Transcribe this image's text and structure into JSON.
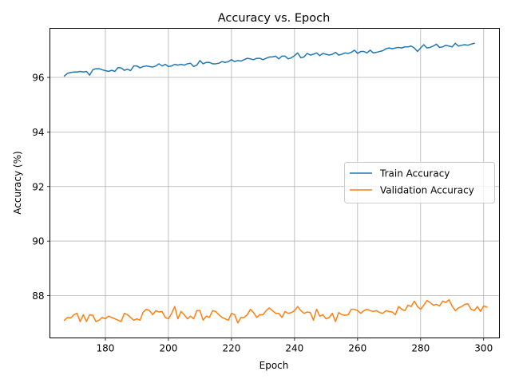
{
  "chart_data": {
    "type": "line",
    "title": "Accuracy vs. Epoch",
    "xlabel": "Epoch",
    "ylabel": "Accuracy (%)",
    "xlim": [
      162.4,
      305.0
    ],
    "ylim": [
      86.45,
      97.8
    ],
    "xticks": [
      180,
      200,
      220,
      240,
      260,
      280,
      300
    ],
    "yticks": [
      88,
      90,
      92,
      94,
      96
    ],
    "grid": true,
    "legend_position": "center-right",
    "series": [
      {
        "name": "Train Accuracy",
        "color": "#1f77b4",
        "x_start": 167,
        "x_step": 1,
        "values": [
          96.05,
          96.15,
          96.18,
          96.2,
          96.2,
          96.22,
          96.2,
          96.22,
          96.08,
          96.28,
          96.32,
          96.32,
          96.28,
          96.25,
          96.22,
          96.26,
          96.22,
          96.36,
          96.35,
          96.26,
          96.3,
          96.25,
          96.42,
          96.42,
          96.35,
          96.4,
          96.42,
          96.4,
          96.38,
          96.42,
          96.5,
          96.42,
          96.48,
          96.4,
          96.42,
          96.48,
          96.45,
          96.48,
          96.45,
          96.5,
          96.52,
          96.4,
          96.45,
          96.62,
          96.5,
          96.55,
          96.55,
          96.5,
          96.5,
          96.52,
          96.58,
          96.55,
          96.58,
          96.65,
          96.58,
          96.62,
          96.6,
          96.65,
          96.7,
          96.68,
          96.65,
          96.7,
          96.7,
          96.65,
          96.7,
          96.75,
          96.75,
          96.78,
          96.68,
          96.78,
          96.78,
          96.68,
          96.72,
          96.8,
          96.9,
          96.72,
          96.75,
          96.88,
          96.82,
          96.85,
          96.9,
          96.8,
          96.88,
          96.85,
          96.82,
          96.85,
          96.92,
          96.82,
          96.85,
          96.9,
          96.88,
          96.92,
          97.0,
          96.88,
          96.95,
          96.95,
          96.9,
          97.0,
          96.9,
          96.92,
          96.95,
          96.98,
          97.05,
          97.08,
          97.05,
          97.08,
          97.1,
          97.08,
          97.12,
          97.12,
          97.15,
          97.08,
          96.95,
          97.08,
          97.2,
          97.08,
          97.1,
          97.15,
          97.22,
          97.1,
          97.12,
          97.18,
          97.15,
          97.12,
          97.25,
          97.15,
          97.18,
          97.2,
          97.18,
          97.22,
          97.25
        ]
      },
      {
        "name": "Validation Accuracy",
        "color": "#ff7f0e",
        "x_start": 167,
        "x_step": 1,
        "values": [
          87.1,
          87.2,
          87.18,
          87.3,
          87.35,
          87.05,
          87.3,
          87.05,
          87.3,
          87.28,
          87.05,
          87.1,
          87.2,
          87.15,
          87.25,
          87.2,
          87.15,
          87.1,
          87.05,
          87.35,
          87.3,
          87.2,
          87.1,
          87.15,
          87.1,
          87.4,
          87.5,
          87.45,
          87.3,
          87.45,
          87.4,
          87.42,
          87.2,
          87.15,
          87.35,
          87.6,
          87.15,
          87.42,
          87.3,
          87.15,
          87.25,
          87.15,
          87.45,
          87.45,
          87.1,
          87.25,
          87.2,
          87.45,
          87.42,
          87.3,
          87.2,
          87.15,
          87.1,
          87.35,
          87.3,
          87.0,
          87.2,
          87.2,
          87.3,
          87.5,
          87.38,
          87.2,
          87.3,
          87.3,
          87.45,
          87.55,
          87.45,
          87.35,
          87.35,
          87.2,
          87.42,
          87.35,
          87.38,
          87.45,
          87.6,
          87.45,
          87.35,
          87.4,
          87.38,
          87.1,
          87.5,
          87.25,
          87.3,
          87.15,
          87.2,
          87.35,
          87.05,
          87.38,
          87.3,
          87.28,
          87.3,
          87.5,
          87.5,
          87.45,
          87.35,
          87.45,
          87.5,
          87.45,
          87.42,
          87.45,
          87.38,
          87.35,
          87.45,
          87.42,
          87.4,
          87.3,
          87.6,
          87.5,
          87.45,
          87.65,
          87.6,
          87.8,
          87.6,
          87.5,
          87.65,
          87.82,
          87.75,
          87.65,
          87.68,
          87.62,
          87.8,
          87.75,
          87.85,
          87.62,
          87.45,
          87.55,
          87.6,
          87.68,
          87.7,
          87.5,
          87.45,
          87.6,
          87.42,
          87.62,
          87.58
        ]
      }
    ]
  }
}
